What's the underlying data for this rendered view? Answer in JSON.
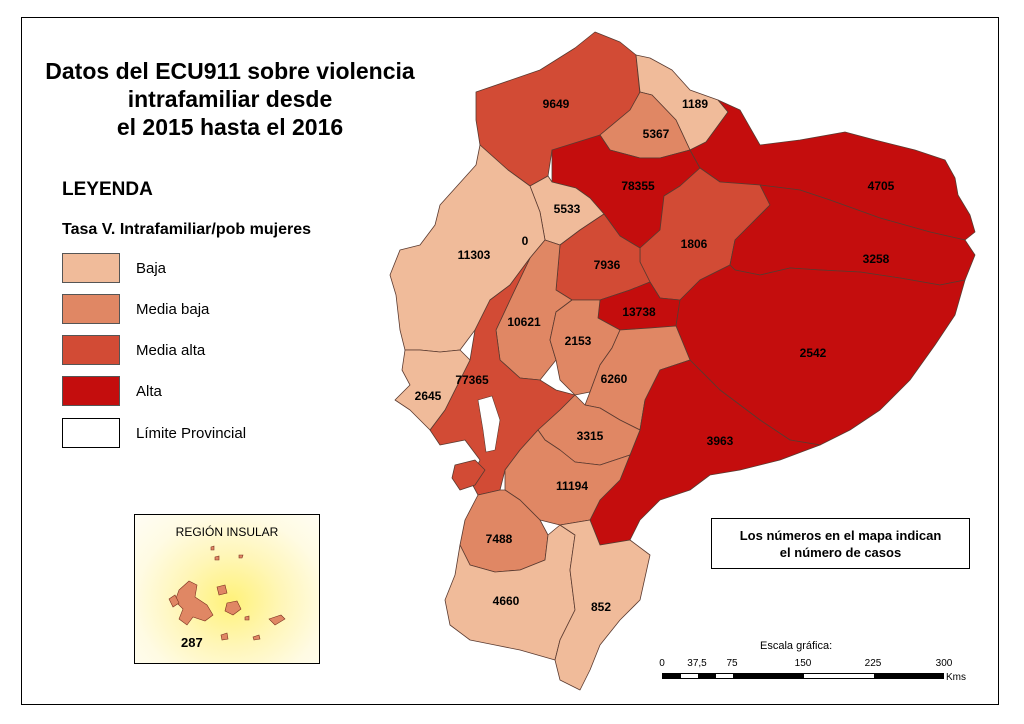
{
  "title": {
    "line1": "Datos del ECU911 sobre violencia",
    "line2": "intrafamiliar desde",
    "line3": "el 2015 hasta el 2016"
  },
  "legend": {
    "heading": "LEYENDA",
    "subtitle": "Tasa V. Intrafamiliar/pob mujeres",
    "items": [
      {
        "label": "Baja",
        "color": "#f0bb9a"
      },
      {
        "label": "Media baja",
        "color": "#e08764"
      },
      {
        "label": "Media alta",
        "color": "#d24b35"
      },
      {
        "label": "Alta",
        "color": "#c40d0d"
      },
      {
        "label": "Límite Provincial",
        "color": "#ffffff"
      }
    ]
  },
  "inset": {
    "title": "REGIÓN INSULAR",
    "value": "287",
    "category": "Media baja"
  },
  "note": {
    "line1": "Los números en el mapa indican",
    "line2": "el número de casos"
  },
  "scale": {
    "title": "Escala gráfica:",
    "ticks": [
      "0",
      "37,5",
      "75",
      "150",
      "225",
      "300"
    ],
    "unit": "Kms"
  },
  "provinces": [
    {
      "value": "9649",
      "category": "Media alta"
    },
    {
      "value": "1189",
      "category": "Baja"
    },
    {
      "value": "5367",
      "category": "Media baja"
    },
    {
      "value": "78355",
      "category": "Alta"
    },
    {
      "value": "4705",
      "category": "Alta"
    },
    {
      "value": "5533",
      "category": "Baja"
    },
    {
      "value": "11303",
      "category": "Baja"
    },
    {
      "value": "0",
      "category": "Baja"
    },
    {
      "value": "1806",
      "category": "Media alta"
    },
    {
      "value": "3258",
      "category": "Alta"
    },
    {
      "value": "7936",
      "category": "Media alta"
    },
    {
      "value": "13738",
      "category": "Alta"
    },
    {
      "value": "10621",
      "category": "Media baja"
    },
    {
      "value": "2153",
      "category": "Media baja"
    },
    {
      "value": "2542",
      "category": "Alta"
    },
    {
      "value": "77365",
      "category": "Media alta"
    },
    {
      "value": "2645",
      "category": "Baja"
    },
    {
      "value": "6260",
      "category": "Media baja"
    },
    {
      "value": "3315",
      "category": "Media baja"
    },
    {
      "value": "3963",
      "category": "Alta"
    },
    {
      "value": "11194",
      "category": "Media baja"
    },
    {
      "value": "7488",
      "category": "Media baja"
    },
    {
      "value": "4660",
      "category": "Baja"
    },
    {
      "value": "852",
      "category": "Baja"
    }
  ]
}
